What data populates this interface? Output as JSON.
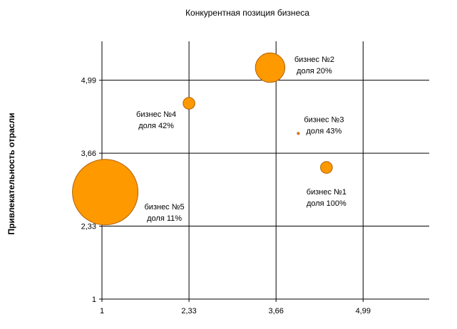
{
  "chart_data": {
    "type": "bubble",
    "title": "Конкурентная позиция бизнеса",
    "xlabel": "",
    "ylabel": "Привлекательность отрасли",
    "xlim": [
      1,
      6.0
    ],
    "ylim": [
      1,
      5.7
    ],
    "x_ticks": [
      "1",
      "2,33",
      "3,66",
      "4,99"
    ],
    "y_ticks": [
      "1",
      "2,33",
      "3,66",
      "4,99"
    ],
    "x_tick_values": [
      1,
      2.33,
      3.66,
      4.99
    ],
    "y_tick_values": [
      1,
      2.33,
      3.66,
      4.99
    ],
    "grid": true,
    "bubble_color": "#FF9900",
    "bubble_stroke": "#B06000",
    "points": [
      {
        "x": 4.43,
        "y": 3.4,
        "radius_rel": 0.18,
        "line1": "бизнес №1",
        "line2": "доля 100%"
      },
      {
        "x": 3.57,
        "y": 5.22,
        "radius_rel": 0.45,
        "line1": "бизнес №2",
        "line2": "доля 20%"
      },
      {
        "x": 4.0,
        "y": 4.02,
        "radius_rel": 0.03,
        "line1": "бизнес №3",
        "line2": "доля 43%"
      },
      {
        "x": 2.33,
        "y": 4.57,
        "radius_rel": 0.18,
        "line1": "бизнес №4",
        "line2": "доля 42%"
      },
      {
        "x": 1.05,
        "y": 2.95,
        "radius_rel": 1.0,
        "line1": "бизнес №5",
        "line2": "доля 11%"
      }
    ]
  }
}
